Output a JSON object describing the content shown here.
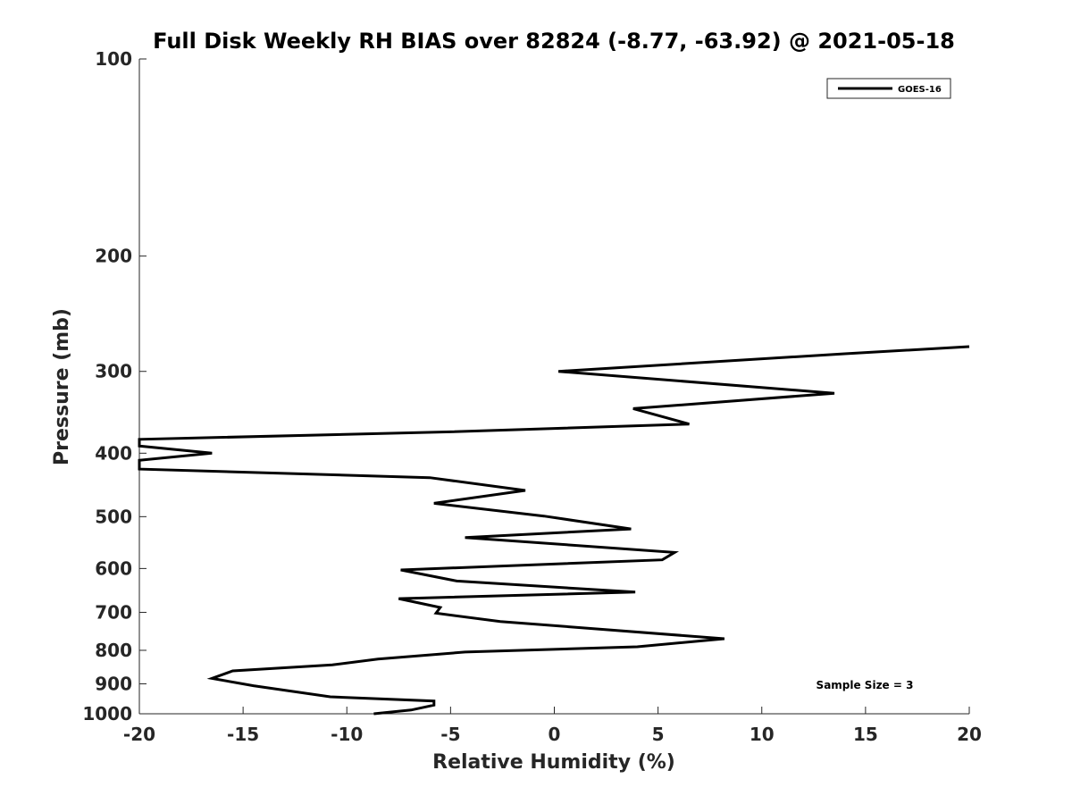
{
  "chart_data": {
    "type": "line",
    "title": "Full Disk Weekly RH BIAS over 82824 (-8.77, -63.92) @ 2021-05-18",
    "xlabel": "Relative Humidity (%)",
    "ylabel": "Pressure (mb)",
    "xlim": [
      -20,
      20
    ],
    "ylim": [
      100,
      1000
    ],
    "yscale": "log",
    "yreversed": true,
    "grid": false,
    "legend_position": "top-right",
    "x_ticks": [
      "-20",
      "-15",
      "-10",
      "-5",
      "0",
      "5",
      "10",
      "15",
      "20"
    ],
    "y_ticks": [
      "100",
      "200",
      "300",
      "400",
      "500",
      "600",
      "700",
      "800",
      "900",
      "1000"
    ],
    "series": [
      {
        "name": "GOES-16",
        "color": "#000000",
        "points": [
          {
            "x": -8.7,
            "y": 1000
          },
          {
            "x": -6.9,
            "y": 987
          },
          {
            "x": -5.8,
            "y": 970
          },
          {
            "x": -5.8,
            "y": 956
          },
          {
            "x": -10.8,
            "y": 942
          },
          {
            "x": -14.5,
            "y": 906
          },
          {
            "x": -16.5,
            "y": 883
          },
          {
            "x": -15.5,
            "y": 860
          },
          {
            "x": -10.7,
            "y": 842
          },
          {
            "x": -8.5,
            "y": 825
          },
          {
            "x": -4.3,
            "y": 805
          },
          {
            "x": 4.0,
            "y": 790
          },
          {
            "x": 8.2,
            "y": 768
          },
          {
            "x": -2.6,
            "y": 723
          },
          {
            "x": -5.7,
            "y": 702
          },
          {
            "x": -5.5,
            "y": 688
          },
          {
            "x": -7.5,
            "y": 667
          },
          {
            "x": 3.9,
            "y": 652
          },
          {
            "x": -4.7,
            "y": 627
          },
          {
            "x": -7.4,
            "y": 603
          },
          {
            "x": 5.2,
            "y": 582
          },
          {
            "x": 5.8,
            "y": 567
          },
          {
            "x": -4.3,
            "y": 538
          },
          {
            "x": 3.7,
            "y": 522
          },
          {
            "x": -0.5,
            "y": 499
          },
          {
            "x": -5.8,
            "y": 477
          },
          {
            "x": -1.4,
            "y": 456
          },
          {
            "x": -6.0,
            "y": 436
          },
          {
            "x": -20.0,
            "y": 423
          },
          {
            "x": -20.0,
            "y": 410
          },
          {
            "x": -16.5,
            "y": 400
          },
          {
            "x": -20.0,
            "y": 390
          },
          {
            "x": -20.0,
            "y": 381
          },
          {
            "x": -5.0,
            "y": 371
          },
          {
            "x": 6.5,
            "y": 361
          },
          {
            "x": 3.8,
            "y": 342
          },
          {
            "x": 13.5,
            "y": 324
          },
          {
            "x": 0.2,
            "y": 300
          },
          {
            "x": 14.0,
            "y": 282
          },
          {
            "x": 20.0,
            "y": 275
          }
        ]
      }
    ],
    "annotations": [
      {
        "text": "Sample Size = 3"
      }
    ]
  }
}
